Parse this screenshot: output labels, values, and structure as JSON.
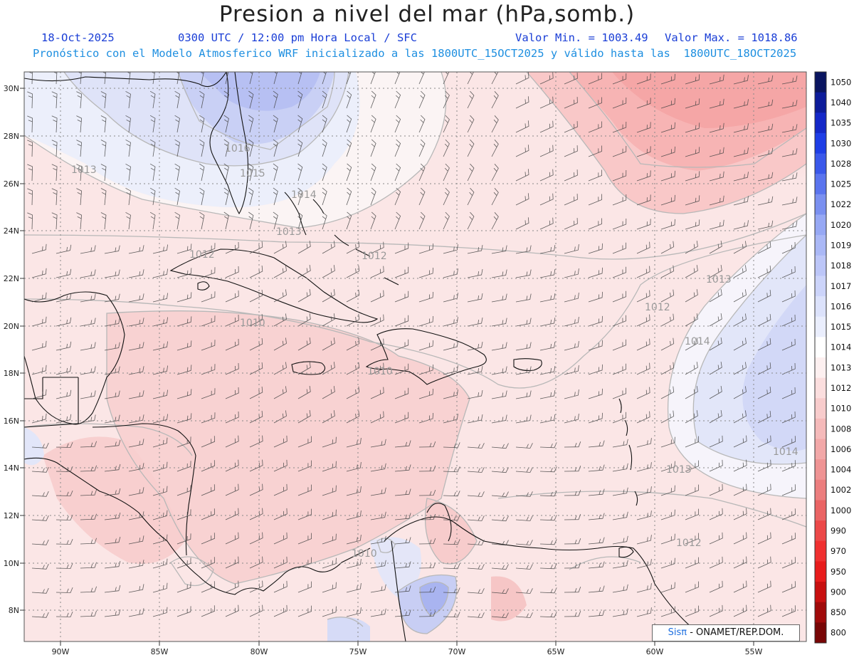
{
  "title": "Presion a nivel del mar (hPa,somb.)",
  "header": {
    "date": "18-Oct-2025",
    "time": "0300 UTC / 12:00 pm Hora Local / SFC",
    "min": "Valor Min. = 1003.49",
    "max": "Valor Max. = 1018.86",
    "model": "Pronóstico con el Modelo Atmosferico WRF inicializado a las 1800UTC_15OCT2025 y válido hasta las  1800UTC_18OCT2025"
  },
  "axes": {
    "lat_labels": [
      "30N",
      "28N",
      "26N",
      "24N",
      "22N",
      "20N",
      "18N",
      "16N",
      "14N",
      "12N",
      "10N",
      "8N"
    ],
    "lon_labels": [
      "90W",
      "85W",
      "80W",
      "75W",
      "70W",
      "65W",
      "60W",
      "55W"
    ]
  },
  "colorbar": {
    "levels": [
      "1050",
      "1040",
      "1035",
      "1030",
      "1028",
      "1025",
      "1022",
      "1020",
      "1019",
      "1018",
      "1017",
      "1016",
      "1015",
      "1014",
      "1013",
      "1012",
      "1010",
      "1008",
      "1006",
      "1004",
      "1002",
      "1000",
      "990",
      "970",
      "950",
      "900",
      "850",
      "800"
    ],
    "colors": [
      "#0a1560",
      "#0d1c9a",
      "#1428c8",
      "#1e3ee6",
      "#3a58ea",
      "#5a74ee",
      "#7a90f0",
      "#96a8f4",
      "#aab8f6",
      "#bcc6f8",
      "#ccd4fa",
      "#dce2fb",
      "#eaeefd",
      "#ffffff",
      "#fdf0f0",
      "#fbdede",
      "#f8cccc",
      "#f5baba",
      "#f2a8a8",
      "#ef9494",
      "#ec7e7e",
      "#ea6464",
      "#ec4848",
      "#f03030",
      "#e81c1c",
      "#c81010",
      "#a00a0a",
      "#780606"
    ]
  },
  "isobar_labels": [
    "1016",
    "1015",
    "1014",
    "1013",
    "1013",
    "1012",
    "1012",
    "1013",
    "1012",
    "1010",
    "1014",
    "1010",
    "1014",
    "1013",
    "1010",
    "1012"
  ],
  "credit": {
    "brand": "Sisπ",
    "text": " - ONAMET/REP.DOM."
  }
}
